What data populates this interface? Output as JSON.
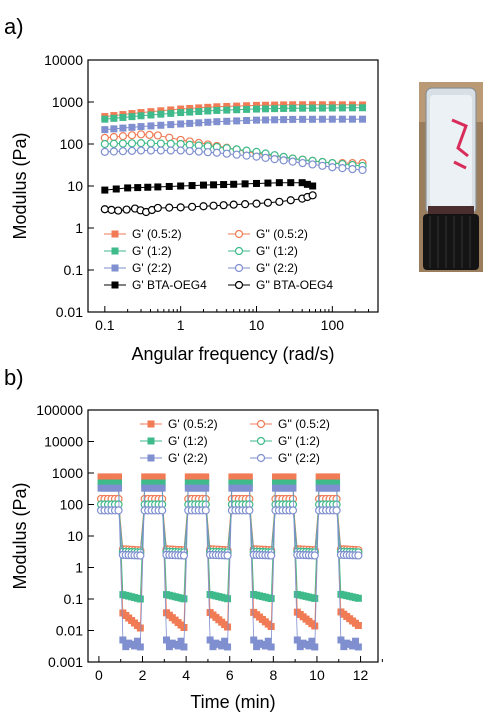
{
  "panels": {
    "a": "a)",
    "b": "b)"
  },
  "colors": {
    "orange": "#f07b54",
    "green": "#3fba8b",
    "blue": "#7f8fcf",
    "black": "#000000"
  },
  "chart_data": [
    {
      "type": "scatter",
      "panel": "a",
      "xlabel": "Angular frequency (rad/s)",
      "ylabel": "Modulus (Pa)",
      "xscale": "log",
      "yscale": "log",
      "xlim": [
        0.06,
        400
      ],
      "ylim": [
        0.01,
        10000
      ],
      "x_ticks": [
        "0.1",
        "1",
        "10",
        "100"
      ],
      "y_ticks": [
        "0.01",
        "0.1",
        "1",
        "10",
        "100",
        "1000",
        "10000"
      ],
      "legend_position": "bottom-left",
      "legend_columns": 2,
      "series": [
        {
          "name": "G' (0.5:2)",
          "color": "#f07b54",
          "marker": "filled-square",
          "x": [
            0.1,
            0.3,
            1,
            3,
            10,
            30,
            100,
            250
          ],
          "y": [
            450,
            560,
            680,
            770,
            830,
            860,
            860,
            850
          ]
        },
        {
          "name": "G'' (0.5:2)",
          "color": "#f07b54",
          "marker": "open-circle",
          "x": [
            0.1,
            0.3,
            0.5,
            1,
            3,
            10,
            30,
            100,
            250
          ],
          "y": [
            140,
            170,
            160,
            125,
            90,
            60,
            45,
            35,
            35
          ]
        },
        {
          "name": "G' (1:2)",
          "color": "#3fba8b",
          "marker": "filled-square",
          "x": [
            0.1,
            0.3,
            1,
            3,
            10,
            30,
            100,
            250
          ],
          "y": [
            390,
            470,
            560,
            630,
            680,
            710,
            720,
            730
          ]
        },
        {
          "name": "G'' (1:2)",
          "color": "#3fba8b",
          "marker": "open-circle",
          "x": [
            0.1,
            0.3,
            1,
            3,
            10,
            30,
            100,
            250
          ],
          "y": [
            100,
            105,
            100,
            85,
            65,
            45,
            35,
            30
          ]
        },
        {
          "name": "G' (2:2)",
          "color": "#7f8fcf",
          "marker": "filled-square",
          "x": [
            0.1,
            0.3,
            1,
            3,
            10,
            30,
            100,
            250
          ],
          "y": [
            220,
            260,
            300,
            340,
            370,
            385,
            390,
            390
          ]
        },
        {
          "name": "G'' (2:2)",
          "color": "#7f8fcf",
          "marker": "open-circle",
          "x": [
            0.1,
            0.3,
            1,
            3,
            10,
            30,
            100,
            250
          ],
          "y": [
            65,
            70,
            70,
            62,
            50,
            38,
            28,
            24
          ]
        },
        {
          "name": "G' BTA-OEG4",
          "color": "#000000",
          "marker": "filled-square",
          "x": [
            0.1,
            0.2,
            0.5,
            1,
            2,
            5,
            10,
            20,
            40,
            55
          ],
          "y": [
            8,
            9,
            9.5,
            10,
            10.5,
            11,
            11.5,
            12,
            12,
            10
          ]
        },
        {
          "name": "G'' BTA-OEG4",
          "color": "#000000",
          "marker": "open-circle",
          "x": [
            0.1,
            0.15,
            0.25,
            0.35,
            0.5,
            1,
            2,
            5,
            10,
            20,
            40,
            55
          ],
          "y": [
            2.8,
            2.6,
            2.9,
            2.4,
            3.0,
            3.1,
            3.3,
            3.6,
            3.8,
            4.2,
            5.0,
            6.0
          ]
        }
      ]
    },
    {
      "type": "scatter",
      "panel": "b",
      "xlabel": "Time (min)",
      "ylabel": "Modulus (Pa)",
      "xscale": "linear",
      "yscale": "log",
      "xlim": [
        -0.5,
        12.8
      ],
      "ylim": [
        0.001,
        100000
      ],
      "x_ticks": [
        "0",
        "2",
        "4",
        "6",
        "8",
        "10",
        "12"
      ],
      "y_ticks": [
        "0.001",
        "0.01",
        "0.1",
        "1",
        "10",
        "100",
        "1000",
        "10000",
        "100000"
      ],
      "legend_position": "top",
      "legend_columns": 2,
      "low_strain_intervals": [
        [
          0,
          1
        ],
        [
          2,
          3
        ],
        [
          4,
          5
        ],
        [
          6,
          7
        ],
        [
          8,
          9
        ],
        [
          10,
          11
        ]
      ],
      "high_strain_intervals": [
        [
          1,
          2
        ],
        [
          3,
          4
        ],
        [
          5,
          6
        ],
        [
          7,
          8
        ],
        [
          9,
          10
        ],
        [
          11,
          12
        ]
      ],
      "series": [
        {
          "name": "G' (0.5:2)",
          "color": "#f07b54",
          "marker": "filled-square",
          "low_value": 750,
          "high_start": 0.075,
          "high_end": 0.012
        },
        {
          "name": "G'' (0.5:2)",
          "color": "#f07b54",
          "marker": "open-circle",
          "low_value": 150,
          "high_start": 4,
          "high_end": 3.5
        },
        {
          "name": "G' (1:2)",
          "color": "#3fba8b",
          "marker": "filled-square",
          "low_value": 480,
          "high_start": 0.17,
          "high_end": 0.1
        },
        {
          "name": "G'' (1:2)",
          "color": "#3fba8b",
          "marker": "open-circle",
          "low_value": 100,
          "high_start": 3.3,
          "high_end": 3
        },
        {
          "name": "G' (2:2)",
          "color": "#7f8fcf",
          "marker": "filled-square",
          "low_value": 330,
          "high_start": 0.005,
          "high_end": 0.003
        },
        {
          "name": "G'' (2:2)",
          "color": "#7f8fcf",
          "marker": "open-circle",
          "low_value": 65,
          "high_start": 2.6,
          "high_end": 2.4
        }
      ]
    }
  ],
  "photo": {
    "description_icon": "vial-icon"
  }
}
